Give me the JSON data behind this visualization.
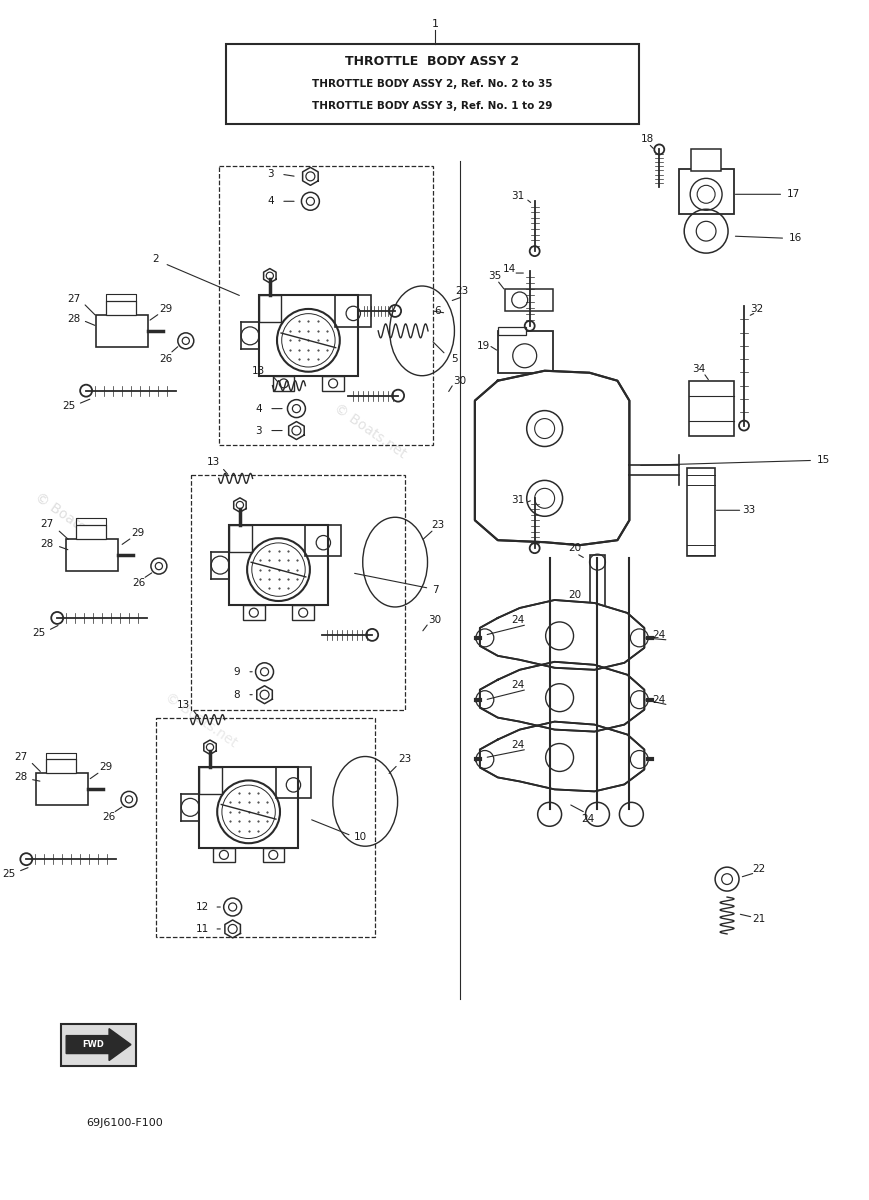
{
  "bg_color": "#ffffff",
  "line_color": "#2a2a2a",
  "text_color": "#1a1a1a",
  "title": {
    "line1": "THROTTLE  BODY ASSY 2",
    "line2": "THROTTLE BODY ASSY 2, Ref. No. 2 to 35",
    "line3": "THROTTLE BODY ASSY 3, Ref. No. 1 to 29"
  },
  "footer": "69J6100-F100",
  "watermark": "© Boats.net"
}
